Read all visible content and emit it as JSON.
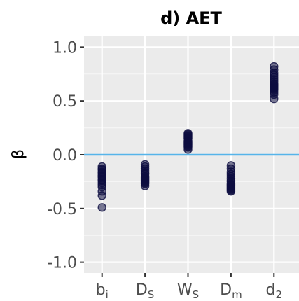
{
  "chart_data": {
    "type": "scatter",
    "title": "d) AET",
    "xlabel": "",
    "ylabel": "β",
    "ylim": [
      -1.1,
      1.1
    ],
    "y_ticks": [
      "1.0",
      "0.5",
      "0.0",
      "-0.5",
      "-1.0"
    ],
    "y_tick_values": [
      1.0,
      0.5,
      0.0,
      -0.5,
      -1.0
    ],
    "categories": [
      {
        "base": "b",
        "sub": "i"
      },
      {
        "base": "D",
        "sub": "S"
      },
      {
        "base": "W",
        "sub": "S"
      },
      {
        "base": "D",
        "sub": "m"
      },
      {
        "base": "d",
        "sub": "2"
      }
    ],
    "reference_line": {
      "y": 0.0,
      "color": "#56b4e9"
    },
    "grid": true,
    "point_color": "#0d0d40",
    "panel_background": "#ebebeb",
    "points": [
      [
        -0.11,
        -0.13,
        -0.14,
        -0.16,
        -0.17,
        -0.19,
        -0.2,
        -0.21,
        -0.23,
        -0.24,
        -0.26,
        -0.28,
        -0.3,
        -0.34,
        -0.38,
        -0.49
      ],
      [
        -0.09,
        -0.11,
        -0.13,
        -0.15,
        -0.17,
        -0.18,
        -0.2,
        -0.21,
        -0.22,
        -0.23,
        -0.24,
        -0.25,
        -0.26,
        -0.27,
        -0.29
      ],
      [
        0.2,
        0.19,
        0.18,
        0.17,
        0.16,
        0.15,
        0.13,
        0.12,
        0.11,
        0.1,
        0.09,
        0.08,
        0.07,
        0.05
      ],
      [
        -0.1,
        -0.13,
        -0.16,
        -0.18,
        -0.2,
        -0.22,
        -0.24,
        -0.25,
        -0.27,
        -0.28,
        -0.29,
        -0.3,
        -0.31,
        -0.32,
        -0.33,
        -0.34
      ],
      [
        0.82,
        0.79,
        0.76,
        0.74,
        0.72,
        0.7,
        0.68,
        0.66,
        0.65,
        0.64,
        0.63,
        0.62,
        0.61,
        0.6,
        0.58,
        0.56,
        0.52
      ]
    ]
  }
}
